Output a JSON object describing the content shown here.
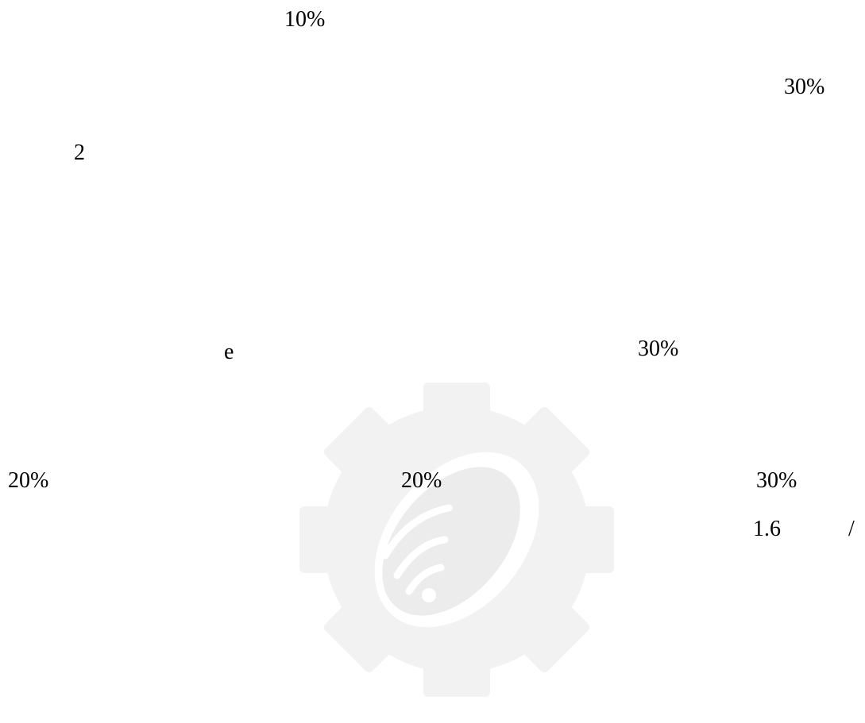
{
  "texts": [
    "10%",
    "30%",
    "2",
    "e",
    "30%",
    "20%",
    "20%",
    "30%",
    "1.6",
    "/"
  ]
}
